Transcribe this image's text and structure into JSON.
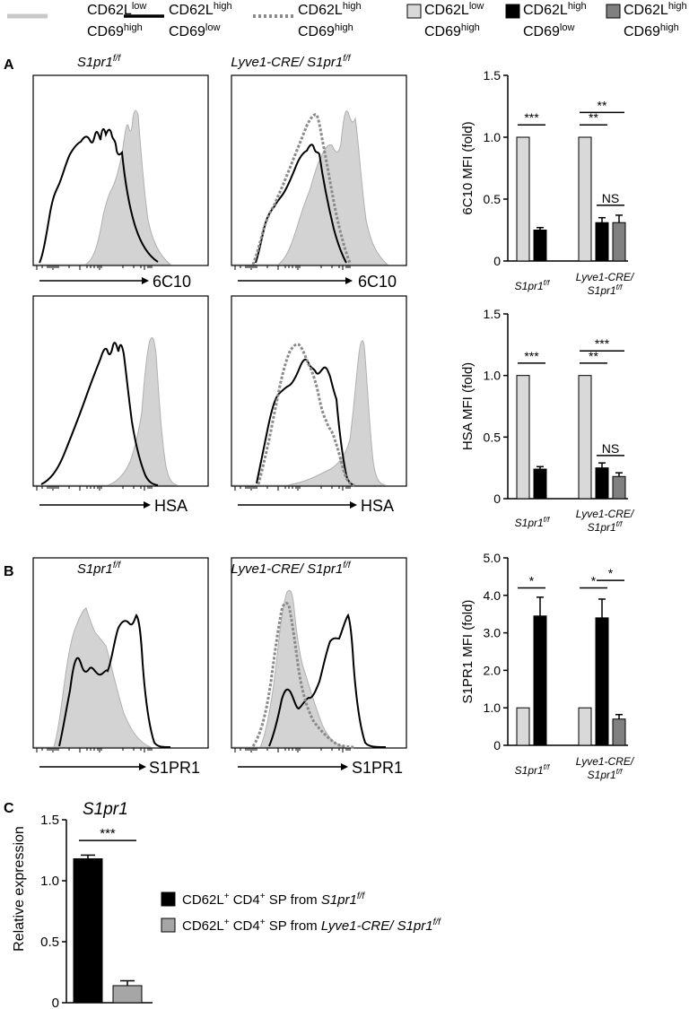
{
  "legend_flow": [
    {
      "line1": "CD62L",
      "sup1": "low",
      "line2": "CD69",
      "sup2": "high",
      "style": "gray-fill"
    },
    {
      "line1": "CD62L",
      "sup1": "high",
      "line2": "CD69",
      "sup2": "low",
      "style": "black-line"
    },
    {
      "line1": "CD62L",
      "sup1": "high",
      "line2": "CD69",
      "sup2": "high",
      "style": "gray-dotted"
    }
  ],
  "legend_bar": [
    {
      "line1": "CD62L",
      "sup1": "low",
      "line2": "CD69",
      "sup2": "high",
      "color": "#d9d9d9"
    },
    {
      "line1": "CD62L",
      "sup1": "high",
      "line2": "CD69",
      "sup2": "low",
      "color": "#000000"
    },
    {
      "line1": "CD62L",
      "sup1": "high",
      "line2": "CD69",
      "sup2": "high",
      "color": "#808080"
    }
  ],
  "panel_labels": {
    "A": "A",
    "B": "B",
    "C": "C"
  },
  "genotypes": {
    "wt": "S1pr1",
    "wt_sup": "f/f",
    "ko_prefix": "Lyve1-CRE/ S1pr1",
    "ko_sup": "f/f"
  },
  "histograms": [
    {
      "marker": "6C10"
    },
    {
      "marker": "HSA"
    },
    {
      "marker": "S1PR1"
    }
  ],
  "bar_group_labels": {
    "wt": "S1pr1",
    "wt_sup": "f/f",
    "ko_line1": "Lyve1-CRE/",
    "ko_line2": "S1pr1",
    "ko_sup": "f/f"
  },
  "chart_data": [
    {
      "type": "bar",
      "ylabel": "6C10 MFI (fold)",
      "ylim": [
        0,
        1.5
      ],
      "ticks": [
        "0",
        "0.5",
        "1.0",
        "1.5"
      ],
      "groups": [
        "S1pr1 f/f",
        "Lyve1-CRE/ S1pr1 f/f"
      ],
      "series": [
        {
          "name": "CD62Llow CD69high",
          "values": [
            1.0,
            1.0
          ],
          "errors": [
            0,
            0
          ]
        },
        {
          "name": "CD62Lhigh CD69low",
          "values": [
            0.25,
            0.31
          ],
          "errors": [
            0.02,
            0.04
          ]
        },
        {
          "name": "CD62Lhigh CD69high",
          "values": [
            null,
            0.31
          ],
          "errors": [
            null,
            0.06
          ]
        }
      ],
      "significance": [
        "***",
        "**",
        "**",
        "NS"
      ]
    },
    {
      "type": "bar",
      "ylabel": "HSA MFI (fold)",
      "ylim": [
        0,
        1.5
      ],
      "ticks": [
        "0",
        "0.5",
        "1.0",
        "1.5"
      ],
      "groups": [
        "S1pr1 f/f",
        "Lyve1-CRE/ S1pr1 f/f"
      ],
      "series": [
        {
          "name": "CD62Llow CD69high",
          "values": [
            1.0,
            1.0
          ],
          "errors": [
            0,
            0
          ]
        },
        {
          "name": "CD62Lhigh CD69low",
          "values": [
            0.24,
            0.25
          ],
          "errors": [
            0.02,
            0.04
          ]
        },
        {
          "name": "CD62Lhigh CD69high",
          "values": [
            null,
            0.18
          ],
          "errors": [
            null,
            0.03
          ]
        }
      ],
      "significance": [
        "***",
        "**",
        "***",
        "NS"
      ]
    },
    {
      "type": "bar",
      "ylabel": "S1PR1 MFI (fold)",
      "ylim": [
        0,
        5.0
      ],
      "ticks": [
        "0",
        "1.0",
        "2.0",
        "3.0",
        "4.0",
        "5.0"
      ],
      "groups": [
        "S1pr1 f/f",
        "Lyve1-CRE/ S1pr1 f/f"
      ],
      "series": [
        {
          "name": "CD62Llow CD69high",
          "values": [
            1.0,
            1.0
          ],
          "errors": [
            0,
            0
          ]
        },
        {
          "name": "CD62Lhigh CD69low",
          "values": [
            3.45,
            3.4
          ],
          "errors": [
            0.5,
            0.5
          ]
        },
        {
          "name": "CD62Lhigh CD69high",
          "values": [
            null,
            0.7
          ],
          "errors": [
            null,
            0.12
          ]
        }
      ],
      "significance": [
        "*",
        "*",
        "*"
      ]
    },
    {
      "type": "bar",
      "title": "S1pr1",
      "ylabel": "Relative expression",
      "ylim": [
        0,
        1.5
      ],
      "ticks": [
        "0",
        "0.5",
        "1.0",
        "1.5"
      ],
      "categories": [
        "CD62L+ CD4+ SP from S1pr1 f/f",
        "CD62L+ CD4+ SP from Lyve1-CRE/ S1pr1 f/f"
      ],
      "values": [
        1.18,
        0.14
      ],
      "errors": [
        0.03,
        0.04
      ],
      "colors": [
        "#000000",
        "#a6a6a6"
      ],
      "significance": [
        "***"
      ]
    }
  ],
  "legend_c": [
    {
      "prefix": "CD62L",
      "sup1": "+",
      "mid": " CD4",
      "sup2": "+",
      "text": " SP from ",
      "genotype": "S1pr1",
      "gsup": "f/f",
      "color": "#000000"
    },
    {
      "prefix": "CD62L",
      "sup1": "+",
      "mid": " CD4",
      "sup2": "+",
      "text": " SP from ",
      "genotype": "Lyve1-CRE/ S1pr1",
      "gsup": "f/f",
      "color": "#a6a6a6"
    }
  ]
}
